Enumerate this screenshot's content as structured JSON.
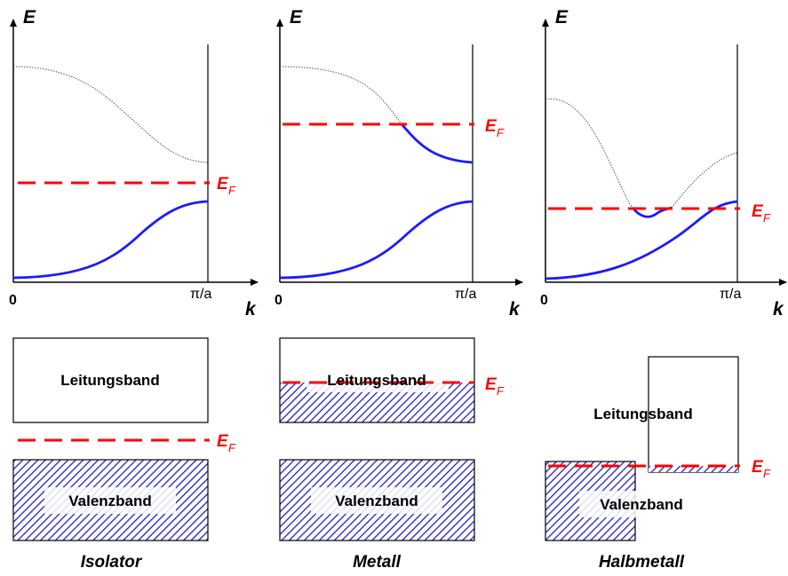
{
  "axes": {
    "energy_label": "E",
    "k_label": "k",
    "origin_label": "0",
    "boundary_label": "π/a"
  },
  "fermi": {
    "main": "E",
    "sub": "F"
  },
  "bands": {
    "conduction": "Leitungsband",
    "valence": "Valenzband"
  },
  "panels": [
    {
      "caption": "Isolator"
    },
    {
      "caption": "Metall"
    },
    {
      "caption": "Halbmetall"
    }
  ],
  "colors": {
    "band_curve": "#1a1aff",
    "fermi_level": "#ff0000",
    "hatch": "#2020c0",
    "dotted_band": "#555555"
  }
}
